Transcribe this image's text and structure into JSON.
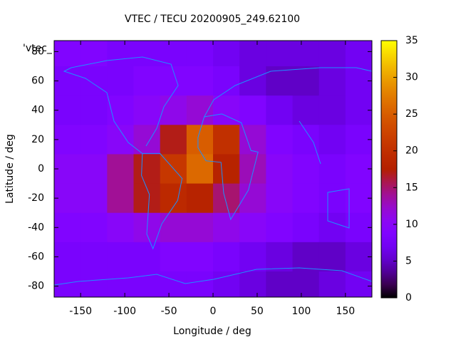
{
  "chart_data": {
    "type": "heatmap",
    "title": "VTEC / TECU 20200905_249.62100",
    "xlabel": "Longitude / deg",
    "ylabel": "Latitude / deg",
    "key_label": "'vtec_",
    "colormap": "gnuplot",
    "x": [
      -165,
      -135,
      -105,
      -75,
      -45,
      -15,
      15,
      45,
      75,
      105,
      135,
      165
    ],
    "y": [
      80,
      60,
      40,
      20,
      0,
      -20,
      -40,
      -60,
      -80
    ],
    "z": [
      [
        9,
        9,
        8,
        8,
        8,
        8,
        7,
        6,
        6,
        6,
        6,
        7
      ],
      [
        8,
        8,
        8,
        9,
        9,
        9,
        8,
        6,
        5,
        5,
        6,
        7
      ],
      [
        8,
        8,
        9,
        10,
        11,
        12,
        10,
        9,
        7,
        6,
        6,
        7
      ],
      [
        9,
        9,
        10,
        12,
        17,
        25,
        20,
        12,
        9,
        8,
        7,
        8
      ],
      [
        10,
        10,
        14,
        17,
        21,
        26,
        18,
        13,
        10,
        9,
        8,
        9
      ],
      [
        10,
        10,
        14,
        17,
        19,
        18,
        15,
        12,
        10,
        9,
        8,
        9
      ],
      [
        9,
        9,
        10,
        11,
        12,
        12,
        11,
        10,
        9,
        8,
        7,
        8
      ],
      [
        8,
        8,
        8,
        8,
        9,
        9,
        8,
        7,
        6,
        5,
        5,
        6
      ],
      [
        8,
        8,
        8,
        8,
        8,
        8,
        7,
        6,
        5,
        5,
        6,
        7
      ]
    ],
    "xlim": [
      -180,
      180
    ],
    "ylim": [
      -87.5,
      87.5
    ],
    "zlim": [
      0,
      35
    ],
    "xticks": [
      -150,
      -100,
      -50,
      0,
      50,
      100,
      150
    ],
    "yticks": [
      -80,
      -60,
      -40,
      -20,
      0,
      20,
      40,
      60,
      80
    ],
    "zticks": [
      0,
      5,
      10,
      15,
      20,
      25,
      30,
      35
    ]
  }
}
